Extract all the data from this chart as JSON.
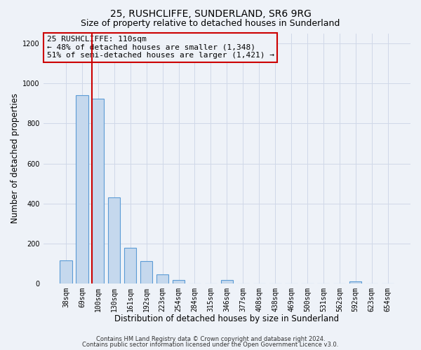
{
  "title": "25, RUSHCLIFFE, SUNDERLAND, SR6 9RG",
  "subtitle": "Size of property relative to detached houses in Sunderland",
  "xlabel": "Distribution of detached houses by size in Sunderland",
  "ylabel": "Number of detached properties",
  "footnote1": "Contains HM Land Registry data © Crown copyright and database right 2024.",
  "footnote2": "Contains public sector information licensed under the Open Government Licence v3.0.",
  "bar_labels": [
    "38sqm",
    "69sqm",
    "100sqm",
    "130sqm",
    "161sqm",
    "192sqm",
    "223sqm",
    "254sqm",
    "284sqm",
    "315sqm",
    "346sqm",
    "377sqm",
    "408sqm",
    "438sqm",
    "469sqm",
    "500sqm",
    "531sqm",
    "562sqm",
    "592sqm",
    "623sqm",
    "654sqm"
  ],
  "bar_values": [
    115,
    940,
    925,
    430,
    180,
    112,
    46,
    18,
    0,
    0,
    18,
    0,
    0,
    0,
    0,
    0,
    0,
    0,
    12,
    0,
    0
  ],
  "bar_color": "#c5d8ed",
  "bar_edge_color": "#5b9bd5",
  "vline_color": "#cc0000",
  "vline_index": 2,
  "annotation_line1": "25 RUSHCLIFFE: 110sqm",
  "annotation_line2": "← 48% of detached houses are smaller (1,348)",
  "annotation_line3": "51% of semi-detached houses are larger (1,421) →",
  "annotation_box_color": "#cc0000",
  "ylim": [
    0,
    1250
  ],
  "yticks": [
    0,
    200,
    400,
    600,
    800,
    1000,
    1200
  ],
  "grid_color": "#d0d8e8",
  "bg_color": "#eef2f8",
  "title_fontsize": 10,
  "subtitle_fontsize": 9,
  "xlabel_fontsize": 8.5,
  "ylabel_fontsize": 8.5,
  "tick_fontsize": 7,
  "annot_fontsize": 8,
  "footnote_fontsize": 6
}
